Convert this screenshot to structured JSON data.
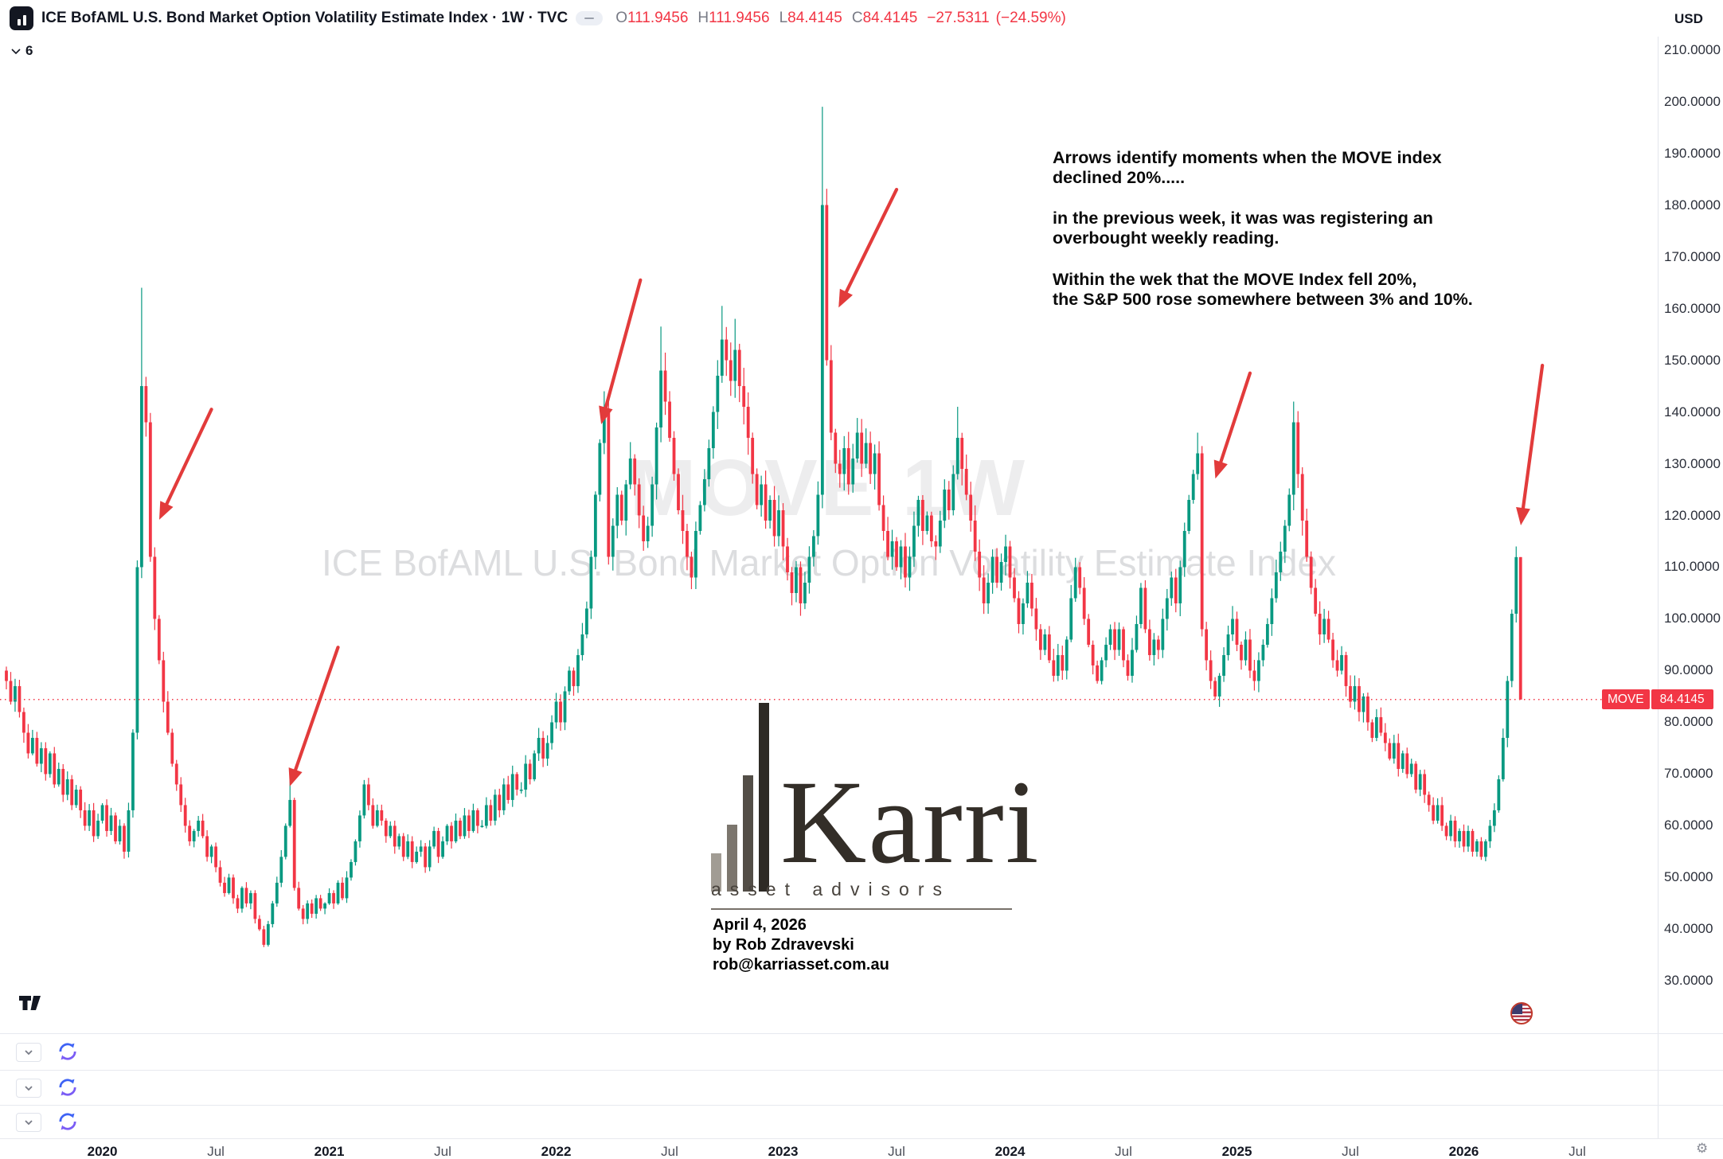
{
  "header": {
    "full_title": "ICE BofAML U.S. Bond Market Option Volatility Estimate Index · 1W · TVC",
    "ohlc": {
      "o_label": "O",
      "o_value": "111.9456",
      "h_label": "H",
      "h_value": "111.9456",
      "l_label": "L",
      "l_value": "84.4145",
      "c_label": "C",
      "c_value": "84.4145",
      "change": "−27.5311",
      "change_pct": "(−24.59%)"
    },
    "currency": "USD"
  },
  "toolbar": {
    "object_count": "6"
  },
  "watermark": {
    "line1": "MOVE 1W",
    "line2": "ICE BofAML U.S. Bond Market Option Volatility Estimate Index"
  },
  "note": {
    "para1": "Arrows identify moments when the MOVE index\ndeclined 20%.....",
    "para2": "in the previous week, it was was registering an\noverbought weekly reading.",
    "para3": "Within the wek that the MOVE Index fell 20%,\nthe S&P 500 rose somewhere between 3% and 10%."
  },
  "logo": {
    "name": "Karri",
    "tagline": "asset advisors"
  },
  "byline": {
    "date": "April 4, 2026",
    "author": "by Rob Zdravevski",
    "email": "rob@karriasset.com.au"
  },
  "price_label": {
    "series": "MOVE",
    "value": "84.4145"
  },
  "colors": {
    "candle_up": "#089981",
    "candle_down": "#f23645",
    "arrow": "#e23b3b",
    "price_line": "#f23645",
    "price_label_bg": "#f23645"
  },
  "chart_data": {
    "type": "candlestick",
    "symbol": "MOVE",
    "exchange": "TVC",
    "interval": "1W",
    "title": "ICE BofAML U.S. Bond Market Option Volatility Estimate Index",
    "last_bar": {
      "open": 111.9456,
      "high": 111.9456,
      "low": 84.4145,
      "close": 84.4145,
      "change": -27.5311,
      "change_pct": -24.59
    },
    "current_price": 84.4145,
    "ylim_labeled": [
      30,
      210
    ],
    "y_ticks": [
      210,
      200,
      190,
      180,
      170,
      160,
      150,
      140,
      130,
      120,
      110,
      100,
      90,
      80,
      70,
      60,
      50,
      40,
      30
    ],
    "x_labels": [
      "2020",
      "Jul",
      "2021",
      "Jul",
      "2022",
      "Jul",
      "2023",
      "Jul",
      "2024",
      "Jul",
      "2025",
      "Jul",
      "2026",
      "Jul"
    ],
    "first_open": 90,
    "weekly_closes": [
      88,
      84,
      87,
      82,
      78,
      74,
      77,
      72,
      75,
      70,
      74,
      68,
      71,
      66,
      69,
      64,
      67,
      63,
      60,
      63,
      58,
      61,
      64,
      59,
      62,
      57,
      60,
      55,
      63,
      78,
      110,
      145,
      138,
      112,
      100,
      92,
      84,
      78,
      72,
      68,
      64,
      60,
      57,
      59,
      61,
      58,
      54,
      56,
      52,
      49,
      47,
      50,
      46,
      44,
      48,
      45,
      47,
      42,
      40,
      37,
      41,
      45,
      49,
      54,
      60,
      65,
      48,
      44,
      42,
      45,
      43,
      46,
      44,
      45,
      47,
      45,
      49,
      46,
      50,
      53,
      57,
      62,
      68,
      64,
      60,
      63,
      61,
      58,
      60,
      56,
      58,
      54,
      57,
      53,
      55,
      56,
      52,
      56,
      59,
      54,
      57,
      60,
      57,
      61,
      58,
      62,
      59,
      63,
      60,
      60,
      64,
      61,
      66,
      63,
      68,
      65,
      70,
      67,
      67,
      72,
      69,
      74,
      77,
      73,
      76,
      80,
      84,
      80,
      86,
      90,
      87,
      93,
      97,
      102,
      112,
      124,
      134,
      140,
      112,
      118,
      124,
      119,
      126,
      131,
      126,
      120,
      115,
      118,
      126,
      137,
      148,
      142,
      135,
      128,
      121,
      117,
      112,
      108,
      117,
      122,
      127,
      133,
      140,
      147,
      154,
      150,
      146,
      152,
      145,
      141,
      135,
      128,
      122,
      126,
      119,
      123,
      116,
      121,
      114,
      109,
      105,
      110,
      103,
      107,
      112,
      116,
      124,
      180,
      150,
      136,
      130,
      128,
      133,
      126,
      131,
      136,
      130,
      134,
      128,
      132,
      122,
      117,
      112,
      115,
      110,
      114,
      108,
      112,
      118,
      123,
      117,
      120,
      115,
      114,
      119,
      125,
      121,
      128,
      135,
      129,
      124,
      119,
      113,
      108,
      103,
      107,
      112,
      107,
      111,
      114,
      108,
      104,
      99,
      103,
      107,
      102,
      98,
      94,
      97,
      92,
      89,
      93,
      90,
      96,
      104,
      110,
      106,
      100,
      95,
      91,
      88,
      92,
      95,
      98,
      94,
      98,
      92,
      89,
      94,
      99,
      106,
      98,
      93,
      96,
      94,
      100,
      104,
      108,
      103,
      110,
      117,
      123,
      128,
      132,
      98,
      92,
      88,
      85,
      89,
      93,
      97,
      100,
      95,
      92,
      96,
      90,
      88,
      92,
      95,
      99,
      104,
      109,
      113,
      118,
      124,
      138,
      128,
      119,
      112,
      106,
      101,
      97,
      100,
      96,
      92,
      90,
      93,
      87,
      84,
      87,
      82,
      85,
      80,
      77,
      81,
      78,
      76,
      73,
      76,
      71,
      74,
      70,
      72,
      67,
      70,
      66,
      64,
      61,
      64,
      60,
      58,
      61,
      57,
      59,
      56,
      59,
      55,
      57,
      54,
      57,
      60,
      63,
      69,
      77,
      88,
      101,
      111.9456,
      84.4145
    ],
    "candle_overrides": {
      "31": {
        "h": 164
      },
      "65": {
        "h": 70
      },
      "137": {
        "h": 144
      },
      "150": {
        "h": 156.5
      },
      "164": {
        "h": 160.5
      },
      "167": {
        "h": 158
      },
      "187": {
        "h": 199
      },
      "218": {
        "h": 141
      },
      "273": {
        "h": 136
      },
      "295": {
        "h": 142
      },
      "346": {
        "h": 114
      },
      "347": {
        "h": 111.9456,
        "l": 84.4145
      }
    },
    "annotations": {
      "arrows": [
        {
          "from_week": 47,
          "from_price": 140.5,
          "to_week": 35.5,
          "to_price": 120
        },
        {
          "from_week": 76,
          "from_price": 94.5,
          "to_week": 65.3,
          "to_price": 68.5
        },
        {
          "from_week": 145.3,
          "from_price": 165.5,
          "to_week": 136.6,
          "to_price": 138.5
        },
        {
          "from_week": 204,
          "from_price": 183,
          "to_week": 191.2,
          "to_price": 161
        },
        {
          "from_week": 285,
          "from_price": 147.5,
          "to_week": 277.4,
          "to_price": 128
        },
        {
          "from_week": 352,
          "from_price": 149,
          "to_week": 347.2,
          "to_price": 119
        }
      ]
    }
  }
}
